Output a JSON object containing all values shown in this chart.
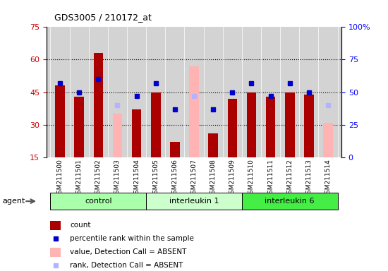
{
  "title": "GDS3005 / 210172_at",
  "samples": [
    "GSM211500",
    "GSM211501",
    "GSM211502",
    "GSM211503",
    "GSM211504",
    "GSM211505",
    "GSM211506",
    "GSM211507",
    "GSM211508",
    "GSM211509",
    "GSM211510",
    "GSM211511",
    "GSM211512",
    "GSM211513",
    "GSM211514"
  ],
  "count": [
    48,
    43,
    63,
    null,
    37,
    45,
    22,
    null,
    26,
    42,
    45,
    43,
    45,
    44,
    null
  ],
  "rank": [
    57,
    50,
    60,
    null,
    47,
    57,
    37,
    null,
    37,
    50,
    57,
    47,
    57,
    50,
    null
  ],
  "count_absent": [
    null,
    null,
    null,
    35,
    null,
    null,
    null,
    57,
    null,
    null,
    null,
    null,
    null,
    null,
    31
  ],
  "rank_absent": [
    null,
    null,
    null,
    40,
    null,
    null,
    null,
    47,
    null,
    null,
    null,
    null,
    null,
    null,
    40
  ],
  "ylim_left": [
    15,
    75
  ],
  "ylim_right": [
    0,
    100
  ],
  "yticks_left": [
    15,
    30,
    45,
    60,
    75
  ],
  "yticks_right": [
    0,
    25,
    50,
    75,
    100
  ],
  "ytick_labels_left": [
    "15",
    "30",
    "45",
    "60",
    "75"
  ],
  "ytick_labels_right": [
    "0",
    "25",
    "50",
    "75",
    "100%"
  ],
  "grid_lines": [
    30,
    45,
    60
  ],
  "bar_color": "#aa0000",
  "bar_absent_color": "#ffb3b3",
  "rank_color": "#0000cc",
  "rank_absent_color": "#b3b3ff",
  "background_color": "#d3d3d3",
  "bar_width": 0.5,
  "group_labels": [
    "control",
    "interleukin 1",
    "interleukin 6"
  ],
  "group_colors": [
    "#aaffaa",
    "#ccffcc",
    "#44ee44"
  ],
  "group_ranges": [
    [
      0,
      4
    ],
    [
      5,
      9
    ],
    [
      10,
      14
    ]
  ],
  "legend_items": [
    {
      "color": "#aa0000",
      "type": "rect",
      "label": "count"
    },
    {
      "color": "#0000cc",
      "type": "square",
      "label": "percentile rank within the sample"
    },
    {
      "color": "#ffb3b3",
      "type": "rect",
      "label": "value, Detection Call = ABSENT"
    },
    {
      "color": "#b3b3ff",
      "type": "square",
      "label": "rank, Detection Call = ABSENT"
    }
  ]
}
